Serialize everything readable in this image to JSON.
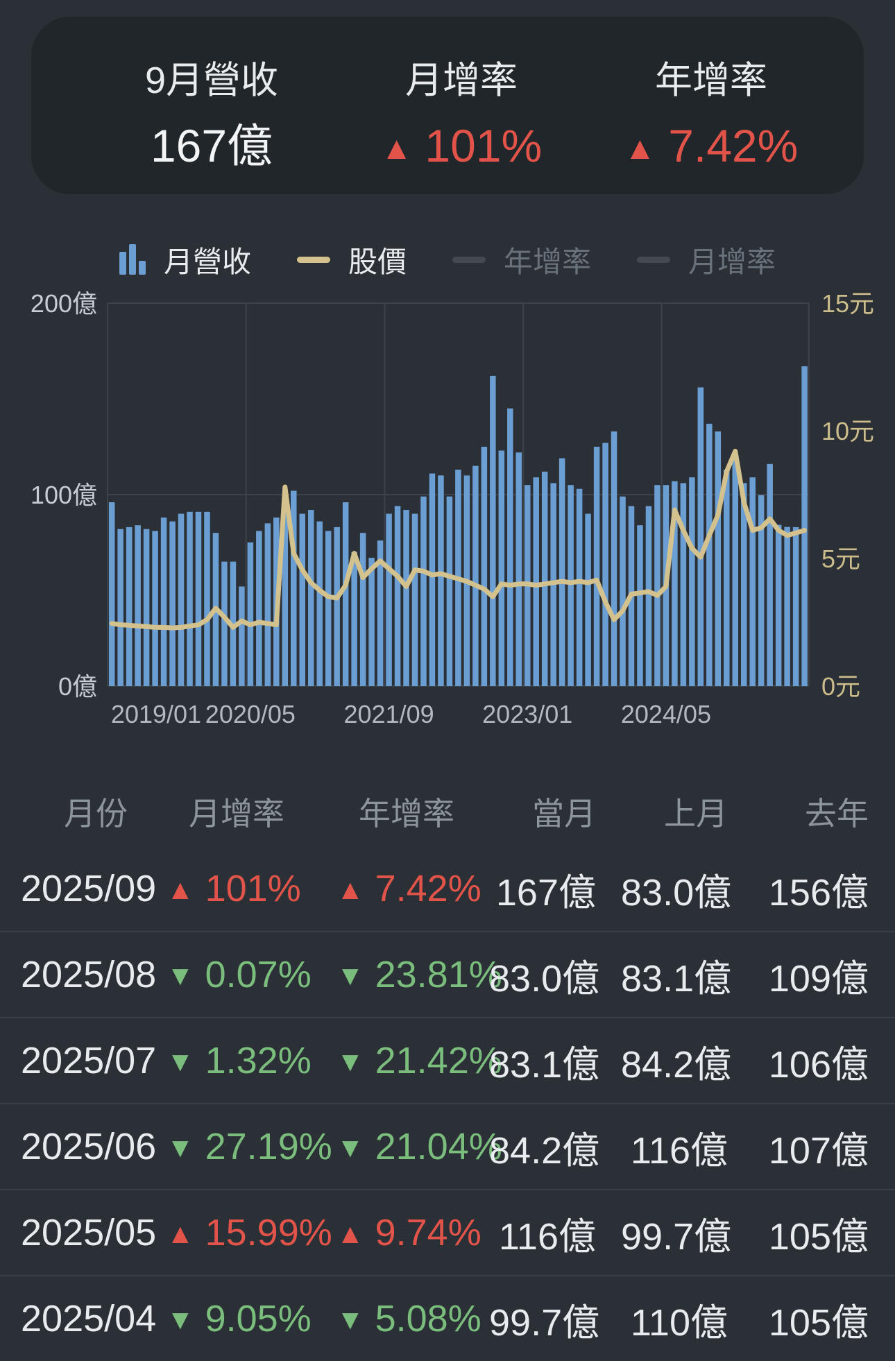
{
  "summary_card": {
    "revenue_label": "9月營收",
    "revenue_value": "167億",
    "mom_label": "月增率",
    "mom_value": "101%",
    "yoy_label": "年增率",
    "yoy_value": "7.42%",
    "up_arrow": "▲",
    "down_arrow": "▼"
  },
  "legend": {
    "items": [
      {
        "label": "月營收",
        "type": "bar",
        "enabled": true,
        "color": "#6b9fd3"
      },
      {
        "label": "股價",
        "type": "line",
        "enabled": true,
        "color": "#d3c18e"
      },
      {
        "label": "年增率",
        "type": "line",
        "enabled": false,
        "color": "#454a50"
      },
      {
        "label": "月增率",
        "type": "line",
        "enabled": false,
        "color": "#454a50"
      }
    ]
  },
  "chart_data": {
    "type": "bar",
    "series": [
      {
        "name": "月營收",
        "type": "bar",
        "unit": "億",
        "axis": "left",
        "color": "#6b9fd3",
        "values": [
          96,
          82,
          83,
          84,
          82,
          81,
          88,
          86,
          90,
          91,
          91,
          91,
          80,
          65,
          65,
          52,
          75,
          81,
          85,
          88,
          97,
          102,
          90,
          92,
          86,
          81,
          83,
          96,
          70,
          80,
          67,
          76,
          90,
          94,
          92,
          90,
          99,
          111,
          110,
          99,
          113,
          110,
          115,
          125,
          162,
          123,
          145,
          122,
          105,
          109,
          112,
          106,
          119,
          105,
          103,
          90,
          125,
          127,
          133,
          99,
          94,
          84,
          94,
          105,
          105,
          107,
          106,
          109,
          156,
          137,
          133,
          113,
          119,
          106,
          109,
          99.7,
          116,
          84.2,
          83.1,
          83.0,
          167
        ]
      },
      {
        "name": "股價",
        "type": "line",
        "unit": "元",
        "axis": "right",
        "color": "#d3c18e",
        "values": [
          2.45,
          2.4,
          2.38,
          2.35,
          2.33,
          2.3,
          2.3,
          2.28,
          2.3,
          2.35,
          2.4,
          2.6,
          3.05,
          2.7,
          2.3,
          2.55,
          2.4,
          2.5,
          2.45,
          2.4,
          7.8,
          5.2,
          4.55,
          4.05,
          3.75,
          3.5,
          3.45,
          3.95,
          5.2,
          4.25,
          4.6,
          4.9,
          4.6,
          4.3,
          3.9,
          4.55,
          4.5,
          4.35,
          4.4,
          4.3,
          4.2,
          4.1,
          3.95,
          3.8,
          3.5,
          4.0,
          3.95,
          4.0,
          4.0,
          3.95,
          4.0,
          4.05,
          4.1,
          4.05,
          4.1,
          4.05,
          4.15,
          3.3,
          2.6,
          2.95,
          3.6,
          3.65,
          3.7,
          3.55,
          3.9,
          6.9,
          6.1,
          5.4,
          5.05,
          5.9,
          6.7,
          8.4,
          9.2,
          7.2,
          6.1,
          6.2,
          6.55,
          6.1,
          5.9,
          6.0,
          6.1
        ]
      }
    ],
    "categories": [
      "2019/01",
      "2019/02",
      "2019/03",
      "2019/04",
      "2019/05",
      "2019/06",
      "2019/07",
      "2019/08",
      "2019/09",
      "2019/10",
      "2019/11",
      "2019/12",
      "2020/01",
      "2020/02",
      "2020/03",
      "2020/04",
      "2020/05",
      "2020/06",
      "2020/07",
      "2020/08",
      "2020/09",
      "2020/10",
      "2020/11",
      "2020/12",
      "2021/01",
      "2021/02",
      "2021/03",
      "2021/04",
      "2021/05",
      "2021/06",
      "2021/07",
      "2021/08",
      "2021/09",
      "2021/10",
      "2021/11",
      "2021/12",
      "2022/01",
      "2022/02",
      "2022/03",
      "2022/04",
      "2022/05",
      "2022/06",
      "2022/07",
      "2022/08",
      "2022/09",
      "2022/10",
      "2022/11",
      "2022/12",
      "2023/01",
      "2023/02",
      "2023/03",
      "2023/04",
      "2023/05",
      "2023/06",
      "2023/07",
      "2023/08",
      "2023/09",
      "2023/10",
      "2023/11",
      "2023/12",
      "2024/01",
      "2024/02",
      "2024/03",
      "2024/04",
      "2024/05",
      "2024/06",
      "2024/07",
      "2024/08",
      "2024/09",
      "2024/10",
      "2024/11",
      "2024/12",
      "2025/01",
      "2025/02",
      "2025/03",
      "2025/04",
      "2025/05",
      "2025/06",
      "2025/07",
      "2025/08",
      "2025/09"
    ],
    "left_axis": {
      "ticks": [
        {
          "value": 200,
          "label": "200億"
        },
        {
          "value": 100,
          "label": "100億"
        },
        {
          "value": 0,
          "label": "0億"
        }
      ],
      "max": 200,
      "grid": true
    },
    "right_axis": {
      "ticks": [
        {
          "value": 15,
          "label": "15元"
        },
        {
          "value": 10,
          "label": "10元"
        },
        {
          "value": 5,
          "label": "5元"
        },
        {
          "value": 0,
          "label": "0元"
        }
      ],
      "max": 15,
      "grid": false
    },
    "x_ticks": [
      {
        "label": "2019/01",
        "index": 0
      },
      {
        "label": "2020/05",
        "index": 16
      },
      {
        "label": "2021/09",
        "index": 32
      },
      {
        "label": "2023/01",
        "index": 48
      },
      {
        "label": "2024/05",
        "index": 64
      }
    ],
    "legend_position": "top",
    "colors": {
      "grid": "#3d434a",
      "left_tick_text": "#c6ccd2",
      "right_tick_text": "#ccbc8c",
      "x_tick_text": "#b2b9bf"
    }
  },
  "table": {
    "headers": [
      "月份",
      "月增率",
      "年增率",
      "當月",
      "上月",
      "去年"
    ],
    "rows": [
      {
        "month": "2025/09",
        "mom_dir": "up",
        "mom": "101%",
        "yoy_dir": "up",
        "yoy": "7.42%",
        "current": "167億",
        "previous": "83.0億",
        "last_year": "156億"
      },
      {
        "month": "2025/08",
        "mom_dir": "down",
        "mom": "0.07%",
        "yoy_dir": "down",
        "yoy": "23.81%",
        "current": "83.0億",
        "previous": "83.1億",
        "last_year": "109億"
      },
      {
        "month": "2025/07",
        "mom_dir": "down",
        "mom": "1.32%",
        "yoy_dir": "down",
        "yoy": "21.42%",
        "current": "83.1億",
        "previous": "84.2億",
        "last_year": "106億"
      },
      {
        "month": "2025/06",
        "mom_dir": "down",
        "mom": "27.19%",
        "yoy_dir": "down",
        "yoy": "21.04%",
        "current": "84.2億",
        "previous": "116億",
        "last_year": "107億"
      },
      {
        "month": "2025/05",
        "mom_dir": "up",
        "mom": "15.99%",
        "yoy_dir": "up",
        "yoy": "9.74%",
        "current": "116億",
        "previous": "99.7億",
        "last_year": "105億"
      },
      {
        "month": "2025/04",
        "mom_dir": "down",
        "mom": "9.05%",
        "yoy_dir": "down",
        "yoy": "5.08%",
        "current": "99.7億",
        "previous": "110億",
        "last_year": "105億"
      }
    ],
    "colors": {
      "up": "#e2544a",
      "down": "#7abd7d"
    }
  }
}
